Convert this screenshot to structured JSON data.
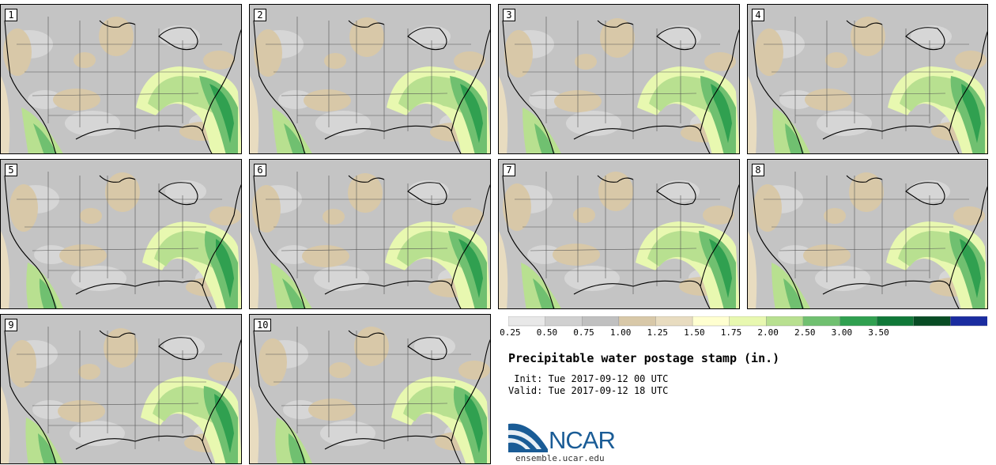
{
  "panels": [
    {
      "label": "1",
      "variant": 0
    },
    {
      "label": "2",
      "variant": 1
    },
    {
      "label": "3",
      "variant": 2
    },
    {
      "label": "4",
      "variant": 3
    },
    {
      "label": "5",
      "variant": 4
    },
    {
      "label": "6",
      "variant": 5
    },
    {
      "label": "7",
      "variant": 6
    },
    {
      "label": "8",
      "variant": 7
    },
    {
      "label": "9",
      "variant": 8
    },
    {
      "label": "10",
      "variant": 9
    }
  ],
  "colorbar": {
    "ticks": [
      "0.25",
      "0.50",
      "0.75",
      "1.00",
      "1.25",
      "1.50",
      "1.75",
      "2.00",
      "2.50",
      "3.00",
      "3.50"
    ],
    "colors": [
      "#e8e8e8",
      "#d0d0d0",
      "#c0c0c0",
      "#d8c8a8",
      "#e8dcc0",
      "#ffffd0",
      "#e8f8b0",
      "#b8e090",
      "#70c070",
      "#30a050",
      "#107838",
      "#084c24",
      "#1a2ca0"
    ]
  },
  "title": "Precipitable water postage stamp (in.)",
  "init": " Init: Tue 2017-09-12 00 UTC",
  "valid": "Valid: Tue 2017-09-12 18 UTC",
  "logo": {
    "text": "NCAR",
    "website": "ensemble.ucar.edu",
    "color": "#1a5c96"
  }
}
